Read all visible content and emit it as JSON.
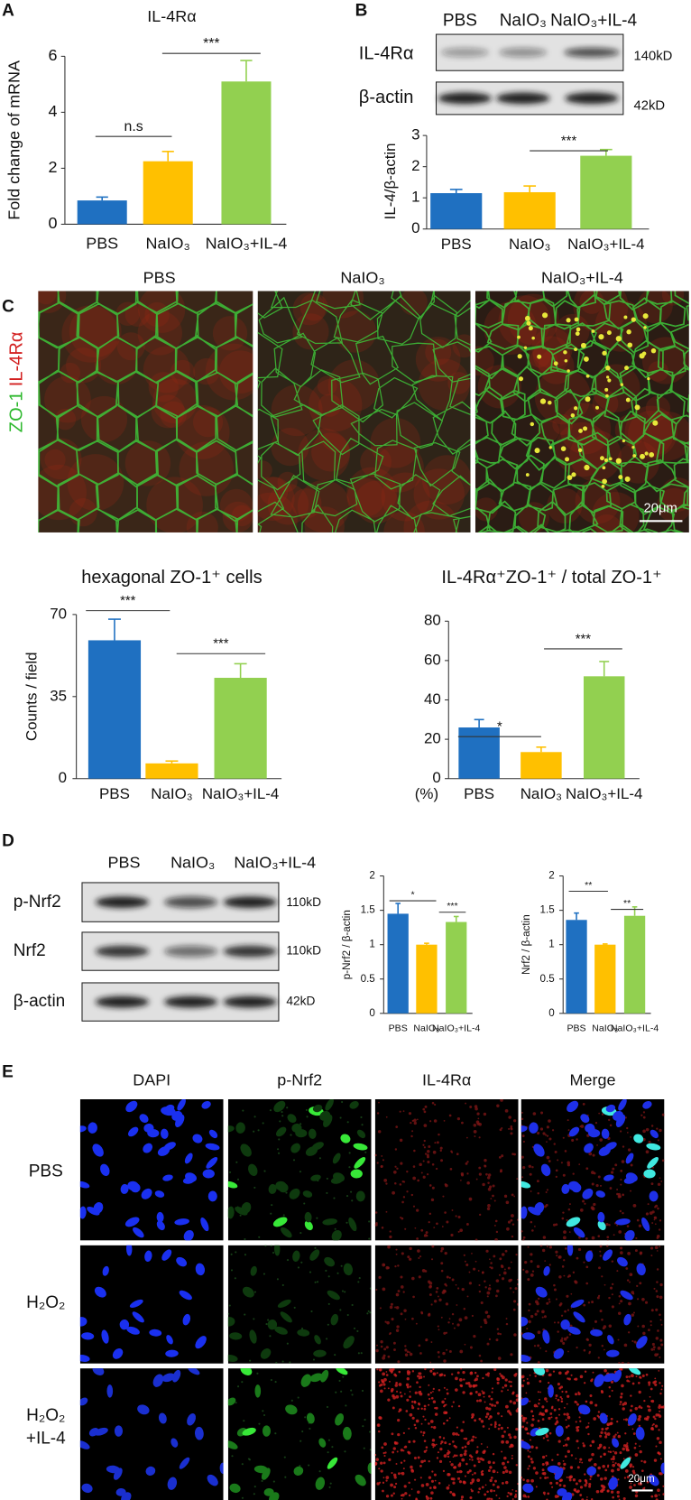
{
  "chart_data": [
    {
      "type": "bar",
      "title": "IL-4Rα",
      "y_label": "Fold change of mRNA",
      "categories": [
        "PBS",
        "NaIO₃",
        "NaIO₃+IL-4"
      ],
      "values": [
        0.85,
        2.25,
        5.1
      ],
      "errors": [
        0.12,
        0.35,
        0.75
      ],
      "colors": [
        "#1f70c1",
        "#ffc000",
        "#92d050"
      ],
      "ylim": [
        0,
        6
      ],
      "yticks": [
        0,
        2,
        4,
        6
      ],
      "annotations": [
        "n.s",
        "***"
      ]
    },
    {
      "type": "bar",
      "y_label": "IL-4/β-actin",
      "categories": [
        "PBS",
        "NaIO₃",
        "NaIO₃+IL-4"
      ],
      "values": [
        1.15,
        1.18,
        2.35
      ],
      "errors": [
        0.12,
        0.2,
        0.2
      ],
      "colors": [
        "#1f70c1",
        "#ffc000",
        "#92d050"
      ],
      "ylim": [
        0,
        3
      ],
      "yticks": [
        0,
        1,
        2,
        3
      ],
      "annotations": [
        "***"
      ]
    },
    {
      "type": "bar",
      "title": "hexagonal ZO-1⁺ cells",
      "y_label": "Counts / field",
      "categories": [
        "PBS",
        "NaIO₃",
        "NaIO₃+IL-4"
      ],
      "values": [
        59,
        6.5,
        43
      ],
      "errors": [
        9,
        1,
        6
      ],
      "colors": [
        "#1f70c1",
        "#ffc000",
        "#92d050"
      ],
      "ylim": [
        0,
        70
      ],
      "yticks": [
        0,
        35,
        70
      ],
      "annotations": [
        "***",
        "***"
      ]
    },
    {
      "type": "bar",
      "title": "IL-4Rα⁺ZO-1⁺ / total ZO-1⁺",
      "y_unit": "(%)",
      "categories": [
        "PBS",
        "NaIO₃",
        "NaIO₃+IL-4"
      ],
      "values": [
        26,
        13.5,
        52
      ],
      "errors": [
        4,
        2.5,
        7.5
      ],
      "colors": [
        "#1f70c1",
        "#ffc000",
        "#92d050"
      ],
      "ylim": [
        0,
        80
      ],
      "yticks": [
        0,
        20,
        40,
        60,
        80
      ],
      "annotations": [
        "*",
        "***"
      ]
    },
    {
      "type": "bar",
      "y_label": "p-Nrf2 / β-actin",
      "categories": [
        "PBS",
        "NaIO₃",
        "NaIO₃+IL-4"
      ],
      "values": [
        1.45,
        1.0,
        1.33
      ],
      "errors": [
        0.15,
        0.02,
        0.08
      ],
      "colors": [
        "#1f70c1",
        "#ffc000",
        "#92d050"
      ],
      "ylim": [
        0,
        2
      ],
      "yticks": [
        0,
        0.5,
        1,
        1.5,
        2
      ],
      "annotations": [
        "*",
        "***"
      ]
    },
    {
      "type": "bar",
      "y_label": "Nrf2 / β-actin",
      "categories": [
        "PBS",
        "NaIO₃",
        "NaIO₃+IL-4"
      ],
      "values": [
        1.36,
        1.0,
        1.42
      ],
      "errors": [
        0.1,
        0.01,
        0.13
      ],
      "colors": [
        "#1f70c1",
        "#ffc000",
        "#92d050"
      ],
      "ylim": [
        0,
        2
      ],
      "yticks": [
        0,
        0.5,
        1,
        1.5,
        2
      ],
      "annotations": [
        "**",
        "**"
      ]
    }
  ],
  "panel_labels": [
    "A",
    "B",
    "C",
    "D",
    "E"
  ],
  "blot_b": {
    "columns": [
      "PBS",
      "NaIO₃",
      "NaIO₃+IL-4"
    ],
    "rows": [
      {
        "label": "IL-4Rα",
        "size": "140kD"
      },
      {
        "label": "β-actin",
        "size": "42kD"
      }
    ]
  },
  "panel_c": {
    "columns": [
      "PBS",
      "NaIO₃",
      "NaIO₃+IL-4"
    ],
    "channels": [
      "ZO-1",
      "IL-4Rα"
    ],
    "scale_bar": "20μm"
  },
  "blot_d": {
    "columns": [
      "PBS",
      "NaIO₃",
      "NaIO₃+IL-4"
    ],
    "rows": [
      {
        "label": "p-Nrf2",
        "size": "110kD"
      },
      {
        "label": "Nrf2",
        "size": "110kD"
      },
      {
        "label": "β-actin",
        "size": "42kD"
      }
    ]
  },
  "panel_e": {
    "columns": [
      "DAPI",
      "p-Nrf2",
      "IL-4Rα",
      "Merge"
    ],
    "rows": [
      [
        "PBS"
      ],
      [
        "H₂O₂"
      ],
      [
        "H₂O₂",
        "+IL-4"
      ]
    ],
    "scale_bar": "20μm"
  }
}
